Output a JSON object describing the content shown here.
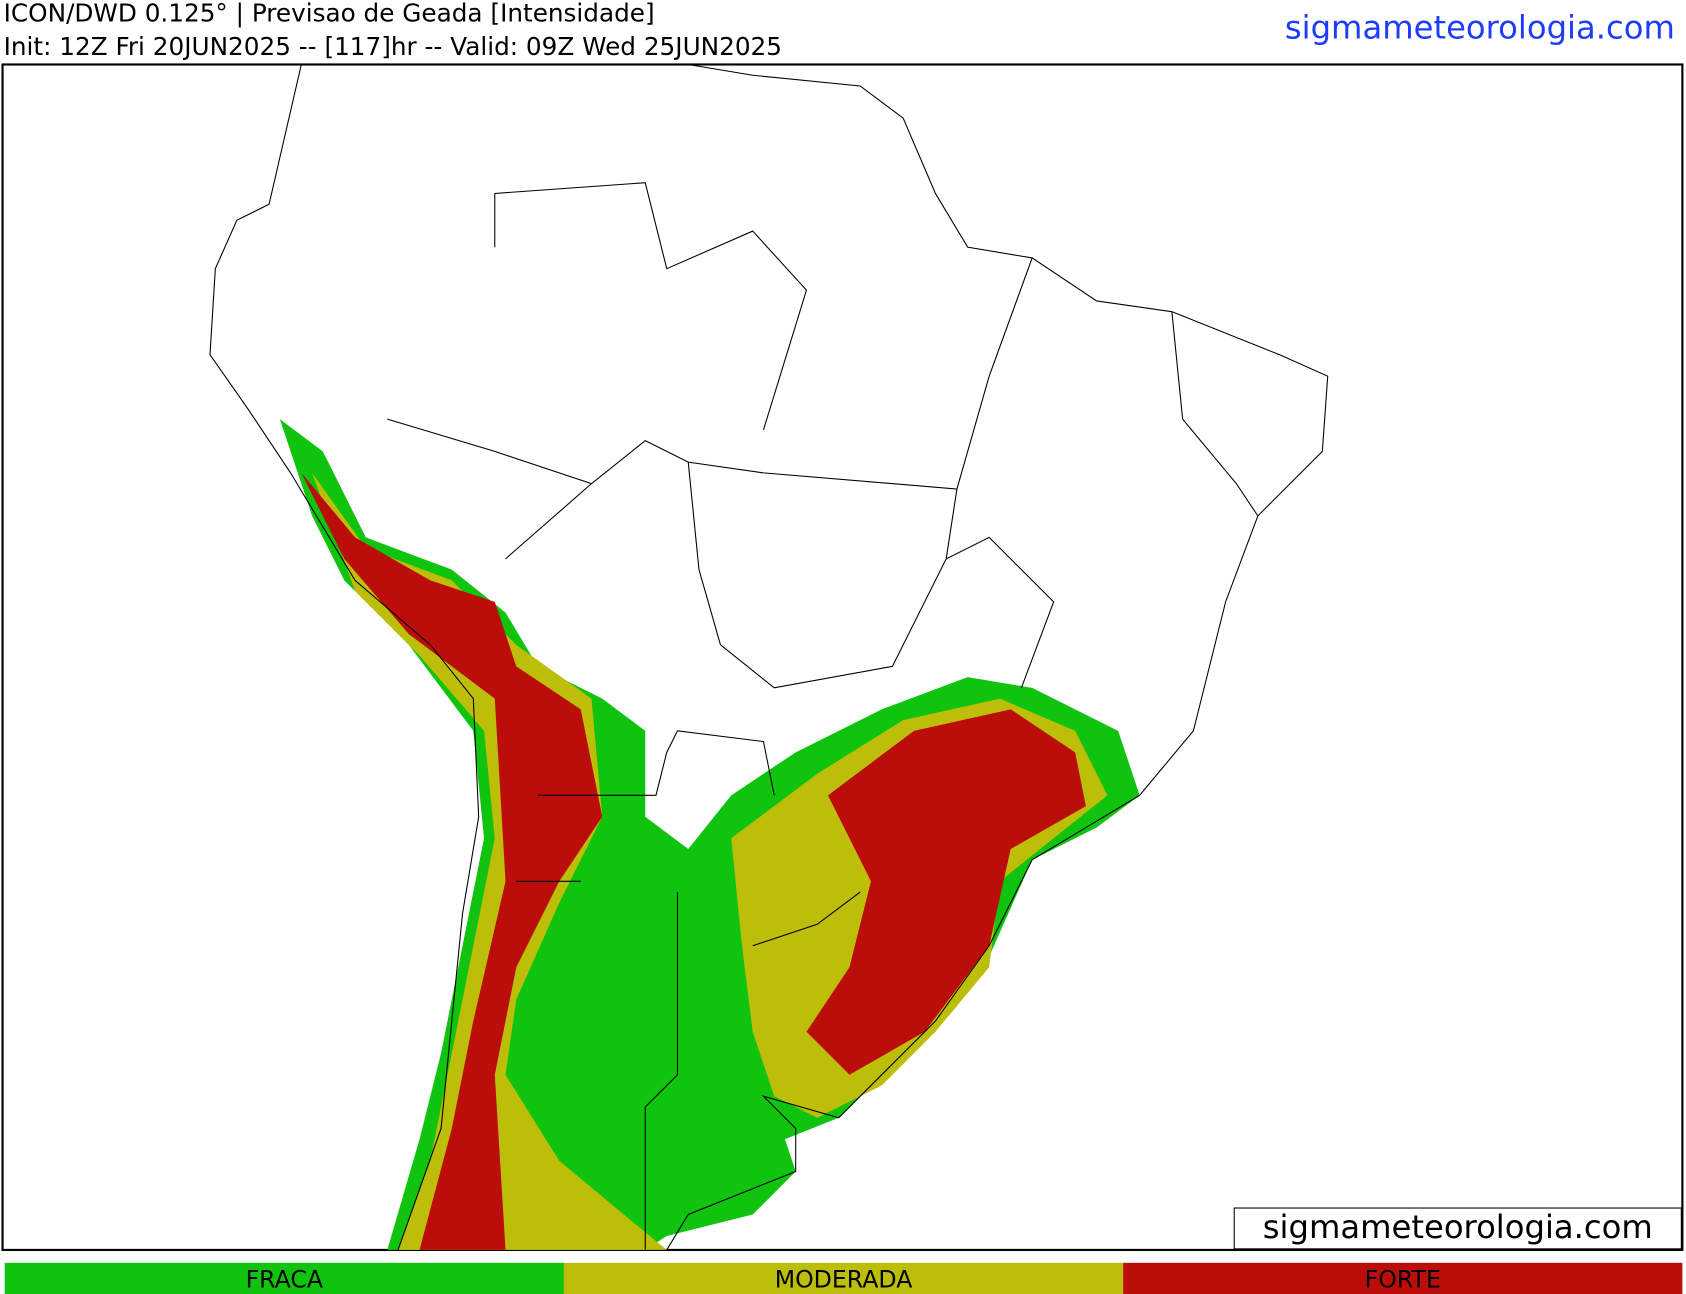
{
  "header": {
    "line1": "ICON/DWD 0.125° | Previsao de Geada [Intensidade]",
    "line2": "Init: 12Z Fri 20JUN2025 -- [117]hr -- Valid: 09Z Wed 25JUN2025",
    "site": "sigmameteorologia.com"
  },
  "watermark": "sigmameteorologia.com",
  "legend": {
    "items": [
      {
        "label": "FRACA",
        "color": "#0fc30f"
      },
      {
        "label": "MODERADA",
        "color": "#bcbe0a"
      },
      {
        "label": "FORTE",
        "color": "#bb0d0a"
      }
    ]
  }
}
